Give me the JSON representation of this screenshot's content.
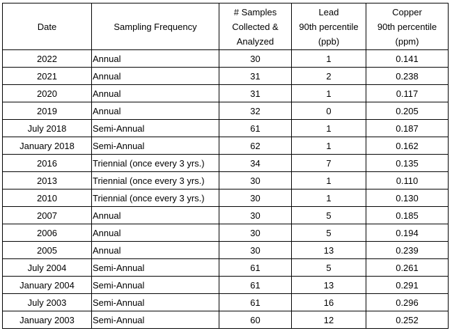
{
  "table": {
    "headers": [
      [
        "Date"
      ],
      [
        "Sampling Frequency"
      ],
      [
        "# Samples",
        "Collected &",
        "Analyzed"
      ],
      [
        "Lead",
        "90th percentile",
        "(ppb)"
      ],
      [
        "Copper",
        "90th percentile",
        "(ppm)"
      ]
    ],
    "rows": [
      [
        "2022",
        "Annual",
        "30",
        "1",
        "0.141"
      ],
      [
        "2021",
        "Annual",
        "31",
        "2",
        "0.238"
      ],
      [
        "2020",
        "Annual",
        "31",
        "1",
        "0.117"
      ],
      [
        "2019",
        "Annual",
        "32",
        "0",
        "0.205"
      ],
      [
        "July 2018",
        "Semi-Annual",
        "61",
        "1",
        "0.187"
      ],
      [
        "January 2018",
        "Semi-Annual",
        "62",
        "1",
        "0.162"
      ],
      [
        "2016",
        "Triennial (once every 3 yrs.)",
        "34",
        "7",
        "0.135"
      ],
      [
        "2013",
        "Triennial (once every 3 yrs.)",
        "30",
        "1",
        "0.110"
      ],
      [
        "2010",
        "Triennial (once every 3 yrs.)",
        "30",
        "1",
        "0.130"
      ],
      [
        "2007",
        "Annual",
        "30",
        "5",
        "0.185"
      ],
      [
        "2006",
        "Annual",
        "30",
        "5",
        "0.194"
      ],
      [
        "2005",
        "Annual",
        "30",
        "13",
        "0.239"
      ],
      [
        "July 2004",
        "Semi-Annual",
        "61",
        "5",
        "0.261"
      ],
      [
        "January 2004",
        "Semi-Annual",
        "61",
        "13",
        "0.291"
      ],
      [
        "July 2003",
        "Semi-Annual",
        "61",
        "16",
        "0.296"
      ],
      [
        "January 2003",
        "Semi-Annual",
        "60",
        "12",
        "0.252"
      ]
    ]
  }
}
